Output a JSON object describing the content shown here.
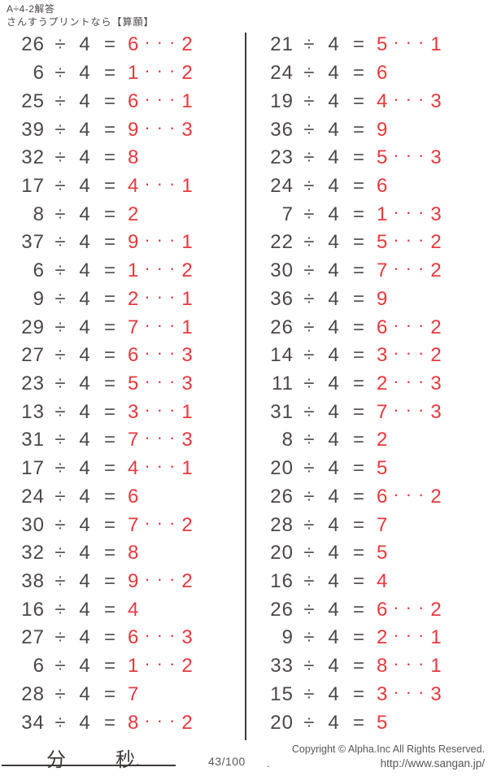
{
  "colors": {
    "answer_red": "#e8383d",
    "ink_dark": "#4c4746",
    "line_dark": "#403a39",
    "footer_gray": "#595757",
    "background": "#ffffff"
  },
  "header": {
    "title": "A÷4-2解答",
    "subtitle": "さんすうプリントなら【算願】"
  },
  "symbols": {
    "divide": "÷",
    "equals": "=",
    "dots": "···"
  },
  "divisor": "4",
  "columns": {
    "left": [
      {
        "dividend": "26",
        "quotient": "6",
        "remainder": "2"
      },
      {
        "dividend": "6",
        "quotient": "1",
        "remainder": "2"
      },
      {
        "dividend": "25",
        "quotient": "6",
        "remainder": "1"
      },
      {
        "dividend": "39",
        "quotient": "9",
        "remainder": "3"
      },
      {
        "dividend": "32",
        "quotient": "8",
        "remainder": ""
      },
      {
        "dividend": "17",
        "quotient": "4",
        "remainder": "1"
      },
      {
        "dividend": "8",
        "quotient": "2",
        "remainder": ""
      },
      {
        "dividend": "37",
        "quotient": "9",
        "remainder": "1"
      },
      {
        "dividend": "6",
        "quotient": "1",
        "remainder": "2"
      },
      {
        "dividend": "9",
        "quotient": "2",
        "remainder": "1"
      },
      {
        "dividend": "29",
        "quotient": "7",
        "remainder": "1"
      },
      {
        "dividend": "27",
        "quotient": "6",
        "remainder": "3"
      },
      {
        "dividend": "23",
        "quotient": "5",
        "remainder": "3"
      },
      {
        "dividend": "13",
        "quotient": "3",
        "remainder": "1"
      },
      {
        "dividend": "31",
        "quotient": "7",
        "remainder": "3"
      },
      {
        "dividend": "17",
        "quotient": "4",
        "remainder": "1"
      },
      {
        "dividend": "24",
        "quotient": "6",
        "remainder": ""
      },
      {
        "dividend": "30",
        "quotient": "7",
        "remainder": "2"
      },
      {
        "dividend": "32",
        "quotient": "8",
        "remainder": ""
      },
      {
        "dividend": "38",
        "quotient": "9",
        "remainder": "2"
      },
      {
        "dividend": "16",
        "quotient": "4",
        "remainder": ""
      },
      {
        "dividend": "27",
        "quotient": "6",
        "remainder": "3"
      },
      {
        "dividend": "6",
        "quotient": "1",
        "remainder": "2"
      },
      {
        "dividend": "28",
        "quotient": "7",
        "remainder": ""
      },
      {
        "dividend": "34",
        "quotient": "8",
        "remainder": "2"
      }
    ],
    "right": [
      {
        "dividend": "21",
        "quotient": "5",
        "remainder": "1"
      },
      {
        "dividend": "24",
        "quotient": "6",
        "remainder": ""
      },
      {
        "dividend": "19",
        "quotient": "4",
        "remainder": "3"
      },
      {
        "dividend": "36",
        "quotient": "9",
        "remainder": ""
      },
      {
        "dividend": "23",
        "quotient": "5",
        "remainder": "3"
      },
      {
        "dividend": "24",
        "quotient": "6",
        "remainder": ""
      },
      {
        "dividend": "7",
        "quotient": "1",
        "remainder": "3"
      },
      {
        "dividend": "22",
        "quotient": "5",
        "remainder": "2"
      },
      {
        "dividend": "30",
        "quotient": "7",
        "remainder": "2"
      },
      {
        "dividend": "36",
        "quotient": "9",
        "remainder": ""
      },
      {
        "dividend": "26",
        "quotient": "6",
        "remainder": "2"
      },
      {
        "dividend": "14",
        "quotient": "3",
        "remainder": "2"
      },
      {
        "dividend": "11",
        "quotient": "2",
        "remainder": "3"
      },
      {
        "dividend": "31",
        "quotient": "7",
        "remainder": "3"
      },
      {
        "dividend": "8",
        "quotient": "2",
        "remainder": ""
      },
      {
        "dividend": "20",
        "quotient": "5",
        "remainder": ""
      },
      {
        "dividend": "26",
        "quotient": "6",
        "remainder": "2"
      },
      {
        "dividend": "28",
        "quotient": "7",
        "remainder": ""
      },
      {
        "dividend": "20",
        "quotient": "5",
        "remainder": ""
      },
      {
        "dividend": "16",
        "quotient": "4",
        "remainder": ""
      },
      {
        "dividend": "26",
        "quotient": "6",
        "remainder": "2"
      },
      {
        "dividend": "9",
        "quotient": "2",
        "remainder": "1"
      },
      {
        "dividend": "33",
        "quotient": "8",
        "remainder": "1"
      },
      {
        "dividend": "15",
        "quotient": "3",
        "remainder": "3"
      },
      {
        "dividend": "20",
        "quotient": "5",
        "remainder": ""
      }
    ]
  },
  "footer": {
    "minutes_label": "分",
    "seconds_label": "秒.",
    "score": "43/100",
    "copyright": "Copyright ©  Alpha.Inc All Rights Reserved.",
    "period": ".",
    "url": "http://www.sangan.jp/"
  }
}
